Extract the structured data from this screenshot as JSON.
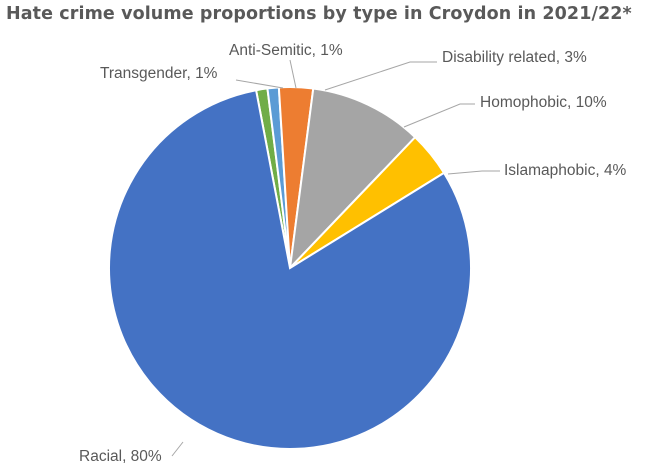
{
  "chart_data": {
    "type": "pie",
    "title": "Hate crime volume proportions by type in Croydon in 2021/22*",
    "slices": [
      {
        "category": "Transgender",
        "value": 1,
        "label": "Transgender, 1%",
        "color": "#70ad47"
      },
      {
        "category": "Anti-Semitic",
        "value": 1,
        "label": "Anti-Semitic, 1%",
        "color": "#5b9bd5"
      },
      {
        "category": "Disability related",
        "value": 3,
        "label": "Disability related, 3%",
        "color": "#ed7d31"
      },
      {
        "category": "Homophobic",
        "value": 10,
        "label": "Homophobic, 10%",
        "color": "#a5a5a5"
      },
      {
        "category": "Islamaphobic",
        "value": 4,
        "label": "Islamaphobic, 4%",
        "color": "#ffc000"
      },
      {
        "category": "Racial",
        "value": 80,
        "label": "Racial, 80%",
        "color": "#4472c4"
      }
    ],
    "legend": "none",
    "data_labels": "outside with leader lines"
  }
}
